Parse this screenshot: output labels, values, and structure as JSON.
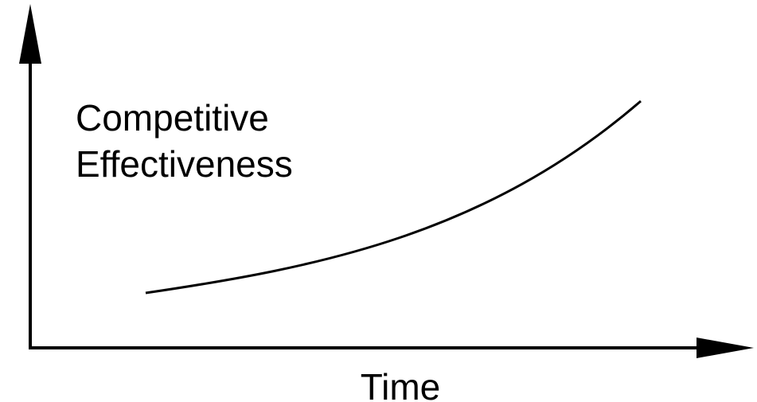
{
  "y_label": {
    "lines": [
      "Competitive",
      "Effectiveness"
    ]
  },
  "x_label": "Time"
}
